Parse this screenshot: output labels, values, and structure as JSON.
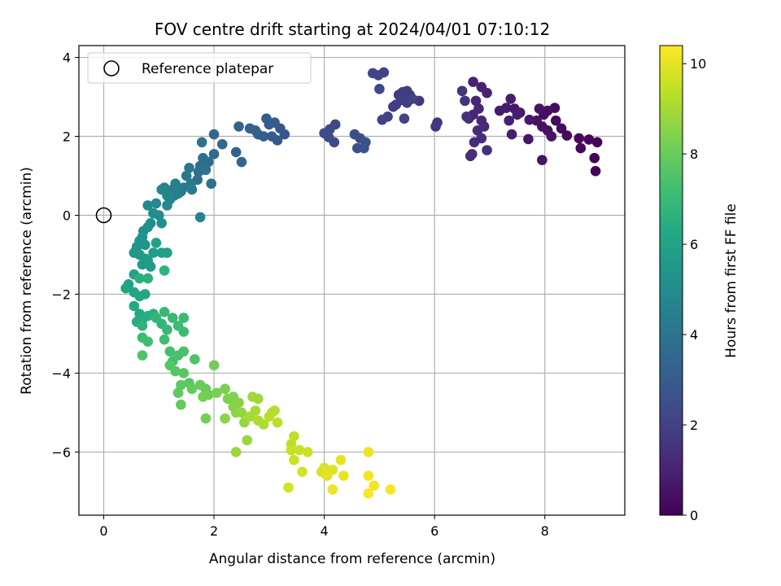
{
  "chart_data": {
    "type": "scatter",
    "title": "FOV centre drift starting at 2024/04/01 07:10:12",
    "xlabel": "Angular distance from reference (arcmin)",
    "ylabel": "Rotation from reference (arcmin)",
    "xlim": [
      -0.45,
      9.45
    ],
    "ylim": [
      -7.6,
      4.3
    ],
    "xticks": [
      0,
      2,
      4,
      6,
      8
    ],
    "yticks": [
      -6,
      -4,
      -2,
      0,
      2,
      4
    ],
    "xtick_labels": [
      "0",
      "2",
      "4",
      "6",
      "8"
    ],
    "ytick_labels": [
      "−6",
      "−4",
      "−2",
      "0",
      "2",
      "4"
    ],
    "grid": true,
    "colormap": "viridis",
    "colorbar": {
      "label": "Hours from first FF file",
      "range": [
        0,
        10.4
      ],
      "ticks": [
        0,
        2,
        4,
        6,
        8,
        10
      ],
      "tick_labels": [
        "0",
        "2",
        "4",
        "6",
        "8",
        "10"
      ]
    },
    "reference": {
      "name": "Reference platepar",
      "x": 0,
      "y": 0
    },
    "legend": {
      "position": "top-left",
      "entries": [
        "Reference platepar"
      ]
    },
    "points": [
      [
        8.95,
        1.85,
        0.1
      ],
      [
        8.9,
        1.45,
        0.1
      ],
      [
        8.92,
        1.12,
        0.1
      ],
      [
        8.8,
        1.92,
        0.2
      ],
      [
        8.62,
        1.95,
        0.2
      ],
      [
        8.65,
        1.7,
        0.2
      ],
      [
        8.4,
        2.02,
        0.3
      ],
      [
        8.3,
        2.2,
        0.3
      ],
      [
        8.2,
        2.4,
        0.3
      ],
      [
        8.18,
        2.72,
        0.4
      ],
      [
        8.05,
        2.65,
        0.4
      ],
      [
        7.98,
        2.55,
        0.4
      ],
      [
        7.9,
        2.7,
        0.5
      ],
      [
        7.85,
        2.4,
        0.5
      ],
      [
        7.95,
        2.25,
        0.5
      ],
      [
        8.05,
        2.15,
        0.5
      ],
      [
        8.12,
        2.0,
        0.6
      ],
      [
        7.95,
        1.4,
        0.6
      ],
      [
        7.7,
        1.93,
        0.6
      ],
      [
        7.72,
        2.42,
        0.7
      ],
      [
        7.55,
        2.6,
        0.7
      ],
      [
        7.45,
        2.7,
        0.7
      ],
      [
        7.38,
        2.95,
        0.8
      ],
      [
        7.3,
        2.72,
        0.8
      ],
      [
        7.18,
        2.65,
        0.8
      ],
      [
        7.35,
        2.4,
        0.9
      ],
      [
        7.4,
        2.05,
        0.9
      ],
      [
        7.5,
        2.55,
        0.9
      ],
      [
        6.95,
        3.1,
        1.0
      ],
      [
        6.85,
        3.25,
        1.0
      ],
      [
        6.7,
        3.38,
        1.0
      ],
      [
        6.75,
        2.9,
        1.1
      ],
      [
        6.8,
        2.7,
        1.1
      ],
      [
        6.7,
        2.55,
        1.1
      ],
      [
        6.62,
        2.45,
        1.2
      ],
      [
        6.85,
        2.4,
        1.2
      ],
      [
        6.9,
        2.25,
        1.2
      ],
      [
        6.78,
        2.15,
        1.3
      ],
      [
        6.85,
        1.95,
        1.3
      ],
      [
        6.72,
        1.85,
        1.3
      ],
      [
        6.68,
        1.55,
        1.4
      ],
      [
        6.65,
        1.5,
        1.4
      ],
      [
        6.95,
        1.65,
        1.4
      ],
      [
        6.5,
        3.15,
        1.5
      ],
      [
        6.55,
        2.9,
        1.5
      ],
      [
        6.58,
        2.5,
        1.5
      ],
      [
        6.05,
        2.35,
        1.6
      ],
      [
        6.02,
        2.25,
        1.6
      ],
      [
        5.72,
        2.9,
        1.7
      ],
      [
        5.5,
        3.15,
        1.8
      ],
      [
        5.55,
        3.05,
        1.8
      ],
      [
        5.42,
        3.12,
        1.8
      ],
      [
        5.35,
        3.05,
        1.8
      ],
      [
        5.4,
        2.92,
        1.9
      ],
      [
        5.3,
        2.8,
        1.9
      ],
      [
        5.25,
        2.75,
        1.9
      ],
      [
        5.5,
        2.85,
        1.9
      ],
      [
        5.6,
        2.95,
        2.0
      ],
      [
        5.15,
        2.5,
        2.0
      ],
      [
        5.05,
        2.42,
        2.0
      ],
      [
        5.45,
        2.45,
        2.0
      ],
      [
        4.98,
        3.55,
        2.1
      ],
      [
        5.08,
        3.62,
        2.1
      ],
      [
        4.88,
        3.6,
        2.1
      ],
      [
        5.0,
        3.2,
        2.2
      ],
      [
        4.2,
        2.3,
        2.3
      ],
      [
        4.1,
        2.18,
        2.3
      ],
      [
        4.0,
        2.08,
        2.4
      ],
      [
        4.08,
        1.98,
        2.4
      ],
      [
        4.18,
        1.85,
        2.4
      ],
      [
        4.55,
        2.05,
        2.5
      ],
      [
        4.65,
        1.95,
        2.5
      ],
      [
        4.75,
        1.85,
        2.6
      ],
      [
        4.6,
        1.7,
        2.6
      ],
      [
        4.72,
        1.7,
        2.6
      ],
      [
        3.2,
        2.2,
        2.8
      ],
      [
        3.28,
        2.05,
        2.8
      ],
      [
        3.15,
        1.9,
        2.9
      ],
      [
        3.1,
        2.35,
        2.9
      ],
      [
        2.95,
        2.45,
        3.0
      ],
      [
        3.0,
        2.3,
        3.0
      ],
      [
        3.05,
        2.0,
        3.0
      ],
      [
        2.9,
        2.0,
        3.1
      ],
      [
        2.8,
        2.05,
        3.1
      ],
      [
        2.65,
        2.2,
        3.2
      ],
      [
        2.75,
        2.15,
        3.2
      ],
      [
        2.45,
        2.25,
        3.3
      ],
      [
        2.4,
        1.6,
        3.3
      ],
      [
        2.5,
        1.35,
        3.4
      ],
      [
        2.15,
        1.8,
        3.5
      ],
      [
        2.0,
        2.05,
        3.5
      ],
      [
        2.0,
        1.55,
        3.6
      ],
      [
        1.9,
        1.35,
        3.6
      ],
      [
        1.8,
        1.45,
        3.7
      ],
      [
        1.75,
        1.25,
        3.7
      ],
      [
        1.72,
        1.1,
        3.8
      ],
      [
        1.7,
        0.9,
        3.8
      ],
      [
        1.85,
        1.15,
        3.9
      ],
      [
        1.95,
        0.8,
        3.9
      ],
      [
        1.78,
        1.85,
        4.0
      ],
      [
        1.55,
        1.2,
        4.1
      ],
      [
        1.5,
        1.0,
        4.1
      ],
      [
        1.58,
        0.8,
        4.2
      ],
      [
        1.45,
        0.7,
        4.2
      ],
      [
        1.6,
        0.65,
        4.3
      ],
      [
        1.4,
        0.6,
        4.3
      ],
      [
        1.35,
        0.55,
        4.4
      ],
      [
        1.28,
        0.5,
        4.4
      ],
      [
        1.25,
        0.65,
        4.5
      ],
      [
        1.3,
        0.8,
        4.5
      ],
      [
        1.75,
        -0.05,
        4.6
      ],
      [
        1.1,
        0.7,
        4.6
      ],
      [
        1.15,
        0.5,
        4.7
      ],
      [
        1.2,
        0.4,
        4.7
      ],
      [
        1.05,
        0.65,
        4.8
      ],
      [
        1.15,
        0.25,
        4.8
      ],
      [
        0.95,
        0.3,
        4.9
      ],
      [
        0.8,
        0.25,
        4.9
      ],
      [
        0.9,
        0.05,
        5.0
      ],
      [
        1.0,
        0.0,
        5.0
      ],
      [
        1.05,
        -0.2,
        5.1
      ],
      [
        0.85,
        -0.2,
        5.1
      ],
      [
        0.8,
        -0.3,
        5.2
      ],
      [
        0.72,
        -0.4,
        5.2
      ],
      [
        0.7,
        -0.55,
        5.3
      ],
      [
        0.65,
        -0.65,
        5.3
      ],
      [
        0.75,
        -0.75,
        5.4
      ],
      [
        0.6,
        -0.8,
        5.4
      ],
      [
        0.55,
        -0.95,
        5.5
      ],
      [
        0.65,
        -1.0,
        5.5
      ],
      [
        0.75,
        -1.1,
        5.6
      ],
      [
        0.7,
        -1.25,
        5.6
      ],
      [
        0.85,
        -1.3,
        5.7
      ],
      [
        0.8,
        -1.15,
        5.7
      ],
      [
        0.9,
        -0.95,
        5.8
      ],
      [
        1.05,
        -0.95,
        5.8
      ],
      [
        1.15,
        -0.95,
        5.9
      ],
      [
        0.95,
        -0.7,
        5.9
      ],
      [
        0.55,
        -1.5,
        6.0
      ],
      [
        0.45,
        -1.75,
        6.0
      ],
      [
        0.4,
        -1.85,
        6.1
      ],
      [
        0.55,
        -1.95,
        6.1
      ],
      [
        0.65,
        -2.05,
        6.2
      ],
      [
        0.75,
        -2.0,
        6.2
      ],
      [
        0.55,
        -2.3,
        6.3
      ],
      [
        0.65,
        -2.5,
        6.3
      ],
      [
        0.6,
        -2.7,
        6.4
      ],
      [
        0.7,
        -2.65,
        6.4
      ],
      [
        0.9,
        -2.5,
        6.5
      ],
      [
        0.8,
        -2.55,
        6.5
      ],
      [
        0.65,
        -1.6,
        6.6
      ],
      [
        0.8,
        -1.6,
        6.6
      ],
      [
        1.1,
        -1.4,
        6.7
      ],
      [
        0.7,
        -2.8,
        6.7
      ],
      [
        0.95,
        -2.6,
        6.8
      ],
      [
        1.05,
        -2.75,
        6.8
      ],
      [
        1.15,
        -2.9,
        6.9
      ],
      [
        1.1,
        -2.45,
        6.9
      ],
      [
        1.25,
        -2.6,
        7.0
      ],
      [
        1.45,
        -2.6,
        7.0
      ],
      [
        1.35,
        -2.8,
        7.1
      ],
      [
        1.45,
        -2.95,
        7.1
      ],
      [
        0.7,
        -3.1,
        7.1
      ],
      [
        0.8,
        -3.2,
        7.2
      ],
      [
        1.1,
        -3.15,
        7.2
      ],
      [
        1.2,
        -3.45,
        7.3
      ],
      [
        1.25,
        -3.7,
        7.3
      ],
      [
        1.35,
        -3.55,
        7.4
      ],
      [
        1.45,
        -3.45,
        7.4
      ],
      [
        1.65,
        -3.65,
        7.5
      ],
      [
        0.7,
        -3.55,
        7.5
      ],
      [
        1.2,
        -3.8,
        7.6
      ],
      [
        1.3,
        -3.95,
        7.6
      ],
      [
        1.45,
        -4.0,
        7.7
      ],
      [
        1.55,
        -4.25,
        7.7
      ],
      [
        1.4,
        -4.3,
        7.8
      ],
      [
        1.35,
        -4.5,
        7.8
      ],
      [
        1.4,
        -4.8,
        7.9
      ],
      [
        1.6,
        -4.4,
        7.9
      ],
      [
        1.75,
        -4.3,
        8.0
      ],
      [
        1.85,
        -4.4,
        8.0
      ],
      [
        2.0,
        -3.8,
        8.1
      ],
      [
        1.9,
        -4.55,
        8.1
      ],
      [
        1.8,
        -4.6,
        8.2
      ],
      [
        1.85,
        -5.15,
        8.2
      ],
      [
        2.05,
        -4.5,
        8.3
      ],
      [
        2.2,
        -4.4,
        8.3
      ],
      [
        2.25,
        -4.65,
        8.4
      ],
      [
        2.35,
        -4.6,
        8.4
      ],
      [
        2.45,
        -4.75,
        8.5
      ],
      [
        2.35,
        -4.85,
        8.5
      ],
      [
        2.2,
        -5.15,
        8.6
      ],
      [
        2.4,
        -5.0,
        8.6
      ],
      [
        2.5,
        -5.0,
        8.7
      ],
      [
        2.55,
        -5.25,
        8.7
      ],
      [
        2.4,
        -6.0,
        8.8
      ],
      [
        2.6,
        -5.7,
        8.8
      ],
      [
        2.7,
        -4.6,
        8.9
      ],
      [
        2.8,
        -4.65,
        8.9
      ],
      [
        2.75,
        -4.95,
        9.0
      ],
      [
        2.65,
        -5.1,
        9.0
      ],
      [
        2.8,
        -5.2,
        9.1
      ],
      [
        2.9,
        -5.3,
        9.1
      ],
      [
        3.05,
        -5.0,
        9.2
      ],
      [
        3.1,
        -4.95,
        9.2
      ],
      [
        3.15,
        -5.25,
        9.3
      ],
      [
        3.0,
        -5.1,
        9.3
      ],
      [
        3.45,
        -5.6,
        9.4
      ],
      [
        3.4,
        -5.8,
        9.4
      ],
      [
        3.4,
        -5.95,
        9.5
      ],
      [
        3.55,
        -5.95,
        9.5
      ],
      [
        3.7,
        -6.0,
        9.6
      ],
      [
        3.45,
        -6.2,
        9.6
      ],
      [
        3.35,
        -6.9,
        9.7
      ],
      [
        3.6,
        -6.5,
        9.7
      ],
      [
        3.95,
        -6.5,
        9.8
      ],
      [
        4.0,
        -6.4,
        9.8
      ],
      [
        4.05,
        -6.6,
        9.9
      ],
      [
        4.15,
        -6.45,
        9.9
      ],
      [
        4.3,
        -6.2,
        10.0
      ],
      [
        4.35,
        -6.6,
        10.0
      ],
      [
        4.15,
        -6.95,
        10.1
      ],
      [
        4.8,
        -6.0,
        10.1
      ],
      [
        4.8,
        -6.6,
        10.2
      ],
      [
        4.9,
        -6.85,
        10.2
      ],
      [
        4.8,
        -7.05,
        10.3
      ],
      [
        5.2,
        -6.95,
        10.3
      ]
    ]
  }
}
